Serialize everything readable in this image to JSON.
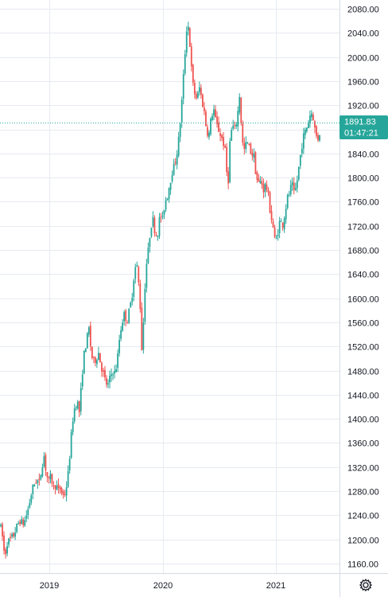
{
  "chart_data": {
    "type": "candlestick",
    "x_axis": {
      "tick_labels": [
        "2019",
        "2020",
        "2021"
      ]
    },
    "y_axis": {
      "range": [
        1150,
        2085
      ],
      "tick_labels": [
        "2080.00",
        "2040.00",
        "2000.00",
        "1960.00",
        "1920.00",
        "1880.00",
        "1840.00",
        "1800.00",
        "1760.00",
        "1720.00",
        "1680.00",
        "1640.00",
        "1600.00",
        "1560.00",
        "1520.00",
        "1480.00",
        "1440.00",
        "1400.00",
        "1360.00",
        "1320.00",
        "1280.00",
        "1240.00",
        "1200.00",
        "1160.00"
      ],
      "tick_values": [
        2080,
        2040,
        2000,
        1960,
        1920,
        1880,
        1840,
        1800,
        1760,
        1720,
        1680,
        1640,
        1600,
        1560,
        1520,
        1480,
        1440,
        1400,
        1360,
        1320,
        1280,
        1240,
        1200,
        1160
      ]
    },
    "x_range": [
      2018.57,
      2021.57
    ],
    "path": [
      [
        2018.57,
        1225
      ],
      [
        2018.59,
        1205
      ],
      [
        2018.61,
        1170
      ],
      [
        2018.63,
        1195
      ],
      [
        2018.66,
        1200
      ],
      [
        2018.68,
        1205
      ],
      [
        2018.7,
        1215
      ],
      [
        2018.72,
        1225
      ],
      [
        2018.74,
        1232
      ],
      [
        2018.76,
        1225
      ],
      [
        2018.78,
        1232
      ],
      [
        2018.8,
        1245
      ],
      [
        2018.82,
        1262
      ],
      [
        2018.84,
        1282
      ],
      [
        2018.86,
        1292
      ],
      [
        2018.88,
        1300
      ],
      [
        2018.9,
        1292
      ],
      [
        2018.92,
        1318
      ],
      [
        2018.94,
        1340
      ],
      [
        2018.96,
        1310
      ],
      [
        2018.98,
        1295
      ],
      [
        2019.0,
        1305
      ],
      [
        2019.02,
        1285
      ],
      [
        2019.04,
        1292
      ],
      [
        2019.06,
        1280
      ],
      [
        2019.08,
        1285
      ],
      [
        2019.1,
        1272
      ],
      [
        2019.12,
        1278
      ],
      [
        2019.14,
        1300
      ],
      [
        2019.16,
        1345
      ],
      [
        2019.18,
        1395
      ],
      [
        2019.2,
        1420
      ],
      [
        2019.22,
        1430
      ],
      [
        2019.24,
        1410
      ],
      [
        2019.26,
        1470
      ],
      [
        2019.28,
        1510
      ],
      [
        2019.3,
        1530
      ],
      [
        2019.32,
        1550
      ],
      [
        2019.34,
        1505
      ],
      [
        2019.36,
        1495
      ],
      [
        2019.38,
        1500
      ],
      [
        2019.4,
        1510
      ],
      [
        2019.42,
        1490
      ],
      [
        2019.44,
        1475
      ],
      [
        2019.46,
        1460
      ],
      [
        2019.48,
        1455
      ],
      [
        2019.5,
        1470
      ],
      [
        2019.52,
        1480
      ],
      [
        2019.54,
        1475
      ],
      [
        2019.56,
        1500
      ],
      [
        2019.58,
        1540
      ],
      [
        2019.6,
        1562
      ],
      [
        2019.62,
        1575
      ],
      [
        2019.64,
        1560
      ],
      [
        2019.66,
        1580
      ],
      [
        2019.68,
        1600
      ],
      [
        2019.7,
        1640
      ],
      [
        2019.72,
        1660
      ],
      [
        2019.74,
        1620
      ],
      [
        2019.76,
        1560
      ],
      [
        2019.77,
        1470
      ],
      [
        2019.78,
        1580
      ],
      [
        2019.8,
        1650
      ],
      [
        2019.82,
        1680
      ],
      [
        2019.84,
        1720
      ],
      [
        2019.86,
        1730
      ],
      [
        2019.88,
        1705
      ],
      [
        2019.9,
        1710
      ],
      [
        2019.92,
        1740
      ],
      [
        2019.94,
        1730
      ],
      [
        2019.96,
        1760
      ],
      [
        2019.98,
        1770
      ],
      [
        2020.0,
        1790
      ],
      [
        2020.02,
        1810
      ],
      [
        2020.04,
        1820
      ],
      [
        2020.06,
        1840
      ],
      [
        2020.08,
        1870
      ],
      [
        2020.1,
        1920
      ],
      [
        2020.12,
        1980
      ],
      [
        2020.14,
        2040
      ],
      [
        2020.15,
        2065
      ],
      [
        2020.17,
        2020
      ],
      [
        2020.19,
        1960
      ],
      [
        2020.21,
        1940
      ],
      [
        2020.23,
        1930
      ],
      [
        2020.25,
        1950
      ],
      [
        2020.27,
        1930
      ],
      [
        2020.29,
        1910
      ],
      [
        2020.31,
        1880
      ],
      [
        2020.33,
        1870
      ],
      [
        2020.35,
        1900
      ],
      [
        2020.37,
        1915
      ],
      [
        2020.39,
        1890
      ],
      [
        2020.41,
        1880
      ],
      [
        2020.43,
        1870
      ],
      [
        2020.45,
        1860
      ],
      [
        2020.47,
        1840
      ],
      [
        2020.49,
        1780
      ],
      [
        2020.51,
        1870
      ],
      [
        2020.53,
        1885
      ],
      [
        2020.55,
        1880
      ],
      [
        2020.57,
        1900
      ],
      [
        2020.59,
        1940
      ],
      [
        2020.61,
        1860
      ],
      [
        2020.63,
        1845
      ],
      [
        2020.65,
        1860
      ],
      [
        2020.67,
        1850
      ],
      [
        2020.69,
        1840
      ],
      [
        2020.71,
        1835
      ],
      [
        2020.73,
        1800
      ],
      [
        2020.75,
        1790
      ],
      [
        2020.77,
        1795
      ],
      [
        2020.79,
        1780
      ],
      [
        2020.81,
        1790
      ],
      [
        2020.83,
        1770
      ],
      [
        2020.85,
        1740
      ],
      [
        2020.87,
        1720
      ],
      [
        2020.89,
        1690
      ],
      [
        2020.91,
        1710
      ],
      [
        2020.93,
        1730
      ],
      [
        2020.95,
        1720
      ],
      [
        2020.97,
        1740
      ],
      [
        2020.99,
        1765
      ],
      [
        2021.01,
        1775
      ],
      [
        2021.03,
        1790
      ],
      [
        2021.05,
        1770
      ],
      [
        2021.07,
        1790
      ],
      [
        2021.09,
        1820
      ],
      [
        2021.11,
        1850
      ],
      [
        2021.13,
        1870
      ],
      [
        2021.15,
        1880
      ],
      [
        2021.17,
        1895
      ],
      [
        2021.19,
        1910
      ],
      [
        2021.21,
        1900
      ],
      [
        2021.23,
        1870
      ],
      [
        2021.25,
        1865
      ],
      [
        2021.27,
        1880
      ]
    ],
    "last_price": 1891.83
  },
  "price_badge": {
    "value": "1891.83",
    "timer": "01:47:21"
  },
  "colors": {
    "up": "#26a69a",
    "down": "#ef5350",
    "grid": "#e6eaf0",
    "axis_border": "#d6dbe4",
    "badge_bg": "#26a69a",
    "price_line": "#26a69a",
    "text": "#131722"
  },
  "settings_icon": "gear-icon"
}
